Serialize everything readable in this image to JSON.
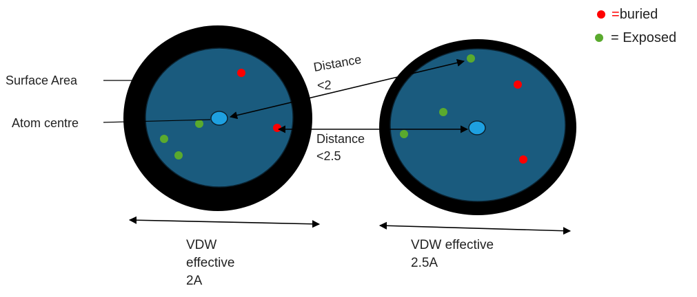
{
  "legend": {
    "buried": "=buried",
    "exposed": "= Exposed"
  },
  "labels": {
    "surface_area": "Surface Area",
    "atom_centre": "Atom centre",
    "distance_1": {
      "line1": "Distance",
      "line2": "<2"
    },
    "distance_2": {
      "line1": "Distance",
      "line2": "<2.5"
    },
    "vdw_left": {
      "line1": "VDW",
      "line2": "effective",
      "line3": "2A"
    },
    "vdw_right": {
      "line1": "VDW effective",
      "line2": "2.5A"
    }
  },
  "colors": {
    "shell": "#000000",
    "interior": "#1a5b7e",
    "interior_edge": "#0a2230",
    "atom_centre": "#1ea0e0",
    "buried": "#ff0000",
    "exposed": "#5aaa2e"
  }
}
